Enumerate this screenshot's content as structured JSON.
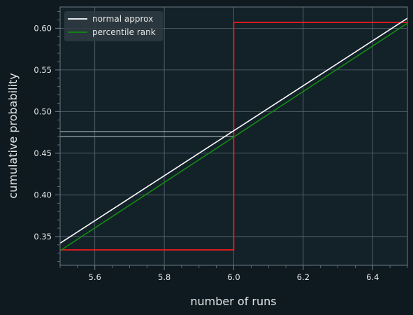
{
  "colors": {
    "figure_bg": "#0e1a20",
    "axes_bg": "#132129",
    "grid": "#5b6a72",
    "spine": "#6b7a82",
    "tick_text": "#e6e6e6",
    "label_text": "#e6e6e6",
    "normal": "#ffffff",
    "percentile": "#128a12",
    "step": "#ff1a1a",
    "guide": "#8f999e",
    "legend_bg": "#2f3b42"
  },
  "chart_data": {
    "type": "line",
    "title": "",
    "xlabel": "number of runs",
    "ylabel": "cumulative probability",
    "xlim": [
      5.5,
      6.5
    ],
    "ylim": [
      0.3155,
      0.6255
    ],
    "grid": true,
    "legend_placement": "top-left",
    "x_ticks": [
      5.6,
      5.8,
      6.0,
      6.2,
      6.4
    ],
    "x_tick_labels": [
      "5.6",
      "5.8",
      "6.0",
      "6.2",
      "6.4"
    ],
    "y_ticks": [
      0.35,
      0.4,
      0.45,
      0.5,
      0.55,
      0.6
    ],
    "y_tick_labels": [
      "0.35",
      "0.40",
      "0.45",
      "0.50",
      "0.55",
      "0.60"
    ],
    "series": [
      {
        "name": "normal approx",
        "color": "#ffffff",
        "x": [
          5.5,
          6.5
        ],
        "y": [
          0.342,
          0.612
        ]
      },
      {
        "name": "percentile rank",
        "color": "#128a12",
        "x": [
          5.5,
          6.5
        ],
        "y": [
          0.333,
          0.606
        ]
      },
      {
        "color": "#ff1a1a",
        "step": true,
        "x": [
          5.5,
          6.0,
          6.0,
          6.5
        ],
        "y": [
          0.334,
          0.334,
          0.607,
          0.607
        ]
      },
      {
        "color": "#8f999e",
        "x": [
          5.5,
          6.0
        ],
        "y": [
          0.476,
          0.476
        ]
      },
      {
        "color": "#8f999e",
        "x": [
          5.5,
          6.0
        ],
        "y": [
          0.47,
          0.47
        ]
      }
    ]
  }
}
